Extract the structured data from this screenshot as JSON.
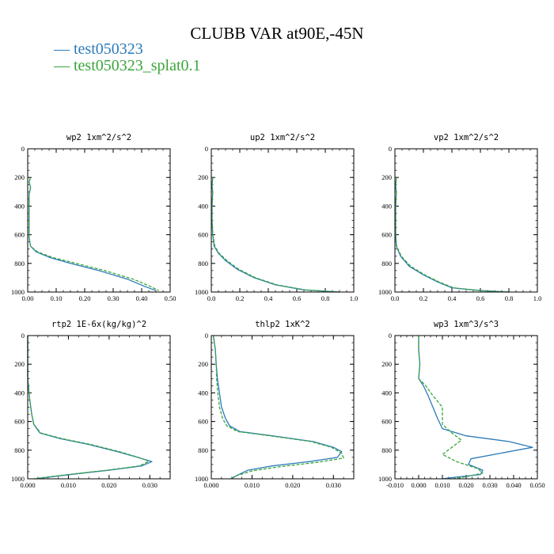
{
  "title": "CLUBB VAR at90E,-45N",
  "legend": [
    {
      "name": "test050323",
      "color": "#2b7bba"
    },
    {
      "name": "test050323_splat0.1",
      "color": "#3aa53a"
    }
  ],
  "chart_data": [
    {
      "type": "line",
      "title": "wp2  1xm^2/s^2",
      "xlim": [
        0,
        0.5
      ],
      "ylim": [
        0,
        1000
      ],
      "xticks": [
        0.0,
        0.1,
        0.2,
        0.3,
        0.4,
        0.5
      ],
      "xticklabels": [
        "0.00",
        "0.10",
        "0.20",
        "0.30",
        "0.40",
        "0.50"
      ],
      "yticks": [
        0,
        200,
        400,
        600,
        800,
        1000
      ],
      "series": [
        {
          "name": "test050323",
          "points": [
            [
              0.01,
              200
            ],
            [
              0.005,
              230
            ],
            [
              0.01,
              270
            ],
            [
              0.005,
              320
            ],
            [
              0.005,
              400
            ],
            [
              0.005,
              500
            ],
            [
              0.005,
              620
            ],
            [
              0.01,
              680
            ],
            [
              0.03,
              720
            ],
            [
              0.08,
              760
            ],
            [
              0.15,
              800
            ],
            [
              0.25,
              850
            ],
            [
              0.35,
              910
            ],
            [
              0.41,
              960
            ],
            [
              0.45,
              990
            ]
          ]
        },
        {
          "name": "test050323_splat0.1",
          "points": [
            [
              0.01,
              200
            ],
            [
              0.005,
              230
            ],
            [
              0.01,
              270
            ],
            [
              0.005,
              320
            ],
            [
              0.005,
              400
            ],
            [
              0.005,
              500
            ],
            [
              0.005,
              620
            ],
            [
              0.01,
              680
            ],
            [
              0.035,
              720
            ],
            [
              0.09,
              760
            ],
            [
              0.17,
              800
            ],
            [
              0.27,
              850
            ],
            [
              0.37,
              910
            ],
            [
              0.43,
              960
            ],
            [
              0.46,
              990
            ]
          ]
        }
      ]
    },
    {
      "type": "line",
      "title": "up2  1xm^2/s^2",
      "xlim": [
        0,
        1.0
      ],
      "ylim": [
        0,
        1000
      ],
      "xticks": [
        0.0,
        0.2,
        0.4,
        0.6,
        0.8,
        1.0
      ],
      "xticklabels": [
        "0.0",
        "0.2",
        "0.4",
        "0.6",
        "0.8",
        "1.0"
      ],
      "yticks": [
        0,
        200,
        400,
        600,
        800,
        1000
      ],
      "series": [
        {
          "name": "test050323",
          "points": [
            [
              0.01,
              200
            ],
            [
              0.005,
              260
            ],
            [
              0.01,
              300
            ],
            [
              0.005,
              400
            ],
            [
              0.005,
              500
            ],
            [
              0.01,
              600
            ],
            [
              0.02,
              680
            ],
            [
              0.05,
              730
            ],
            [
              0.1,
              780
            ],
            [
              0.18,
              840
            ],
            [
              0.3,
              900
            ],
            [
              0.45,
              950
            ],
            [
              0.65,
              985
            ],
            [
              0.9,
              1000
            ]
          ]
        },
        {
          "name": "test050323_splat0.1",
          "points": [
            [
              0.01,
              200
            ],
            [
              0.005,
              260
            ],
            [
              0.01,
              300
            ],
            [
              0.005,
              400
            ],
            [
              0.005,
              500
            ],
            [
              0.01,
              600
            ],
            [
              0.025,
              680
            ],
            [
              0.055,
              730
            ],
            [
              0.11,
              780
            ],
            [
              0.19,
              840
            ],
            [
              0.31,
              900
            ],
            [
              0.46,
              950
            ],
            [
              0.66,
              985
            ],
            [
              0.9,
              1000
            ]
          ]
        }
      ]
    },
    {
      "type": "line",
      "title": "vp2  1xm^2/s^2",
      "xlim": [
        0,
        1.0
      ],
      "ylim": [
        0,
        1000
      ],
      "xticks": [
        0.0,
        0.2,
        0.4,
        0.6,
        0.8,
        1.0
      ],
      "xticklabels": [
        "0.0",
        "0.2",
        "0.4",
        "0.6",
        "0.8",
        "1.0"
      ],
      "yticks": [
        0,
        200,
        400,
        600,
        800,
        1000
      ],
      "series": [
        {
          "name": "test050323",
          "points": [
            [
              0.01,
              200
            ],
            [
              0.005,
              260
            ],
            [
              0.01,
              300
            ],
            [
              0.005,
              400
            ],
            [
              0.005,
              500
            ],
            [
              0.005,
              600
            ],
            [
              0.01,
              680
            ],
            [
              0.04,
              750
            ],
            [
              0.1,
              820
            ],
            [
              0.2,
              880
            ],
            [
              0.3,
              930
            ],
            [
              0.4,
              970
            ],
            [
              0.6,
              990
            ],
            [
              0.8,
              1000
            ]
          ]
        },
        {
          "name": "test050323_splat0.1",
          "points": [
            [
              0.01,
              200
            ],
            [
              0.005,
              260
            ],
            [
              0.01,
              300
            ],
            [
              0.005,
              400
            ],
            [
              0.005,
              500
            ],
            [
              0.005,
              600
            ],
            [
              0.012,
              680
            ],
            [
              0.045,
              750
            ],
            [
              0.11,
              820
            ],
            [
              0.21,
              880
            ],
            [
              0.31,
              930
            ],
            [
              0.41,
              970
            ],
            [
              0.6,
              990
            ],
            [
              0.8,
              1000
            ]
          ]
        }
      ]
    },
    {
      "type": "line",
      "title": "rtp2  1E-6x(kg/kg)^2",
      "xlim": [
        0,
        0.035
      ],
      "ylim": [
        0,
        1000
      ],
      "xticks": [
        0.0,
        0.01,
        0.02,
        0.03
      ],
      "xticklabels": [
        "0.000",
        "0.010",
        "0.020",
        "0.030"
      ],
      "yticks": [
        0,
        200,
        400,
        600,
        800,
        1000
      ],
      "series": [
        {
          "name": "test050323",
          "points": [
            [
              0.0,
              0
            ],
            [
              0.0,
              300
            ],
            [
              0.0005,
              450
            ],
            [
              0.001,
              550
            ],
            [
              0.0015,
              620
            ],
            [
              0.003,
              680
            ],
            [
              0.008,
              720
            ],
            [
              0.015,
              760
            ],
            [
              0.022,
              810
            ],
            [
              0.027,
              850
            ],
            [
              0.0305,
              880
            ],
            [
              0.028,
              910
            ],
            [
              0.02,
              940
            ],
            [
              0.012,
              965
            ],
            [
              0.006,
              985
            ],
            [
              0.002,
              1000
            ]
          ]
        },
        {
          "name": "test050323_splat0.1",
          "points": [
            [
              0.0,
              0
            ],
            [
              0.0,
              300
            ],
            [
              0.0005,
              450
            ],
            [
              0.001,
              550
            ],
            [
              0.0015,
              620
            ],
            [
              0.0032,
              680
            ],
            [
              0.0085,
              720
            ],
            [
              0.0155,
              760
            ],
            [
              0.0225,
              810
            ],
            [
              0.0272,
              850
            ],
            [
              0.0298,
              878
            ],
            [
              0.0275,
              910
            ],
            [
              0.0195,
              940
            ],
            [
              0.0115,
              965
            ],
            [
              0.0055,
              985
            ],
            [
              0.0015,
              1000
            ]
          ]
        }
      ]
    },
    {
      "type": "line",
      "title": "thlp2  1xK^2",
      "xlim": [
        0,
        0.035
      ],
      "ylim": [
        0,
        1000
      ],
      "xticks": [
        0.0,
        0.01,
        0.02,
        0.03
      ],
      "xticklabels": [
        "0.000",
        "0.010",
        "0.020",
        "0.030"
      ],
      "yticks": [
        0,
        200,
        400,
        600,
        800,
        1000
      ],
      "series": [
        {
          "name": "test050323",
          "points": [
            [
              0.0005,
              0
            ],
            [
              0.001,
              100
            ],
            [
              0.0012,
              200
            ],
            [
              0.0015,
              300
            ],
            [
              0.002,
              400
            ],
            [
              0.0025,
              500
            ],
            [
              0.0035,
              580
            ],
            [
              0.0045,
              630
            ],
            [
              0.007,
              670
            ],
            [
              0.015,
              700
            ],
            [
              0.025,
              740
            ],
            [
              0.03,
              780
            ],
            [
              0.032,
              810
            ],
            [
              0.031,
              850
            ],
            [
              0.024,
              880
            ],
            [
              0.015,
              910
            ],
            [
              0.009,
              940
            ],
            [
              0.006,
              980
            ],
            [
              0.005,
              1000
            ]
          ]
        },
        {
          "name": "test050323_splat0.1",
          "points": [
            [
              0.0005,
              0
            ],
            [
              0.001,
              100
            ],
            [
              0.0012,
              200
            ],
            [
              0.0013,
              300
            ],
            [
              0.0016,
              400
            ],
            [
              0.002,
              500
            ],
            [
              0.0028,
              580
            ],
            [
              0.0038,
              630
            ],
            [
              0.0065,
              670
            ],
            [
              0.0145,
              700
            ],
            [
              0.0245,
              740
            ],
            [
              0.0295,
              780
            ],
            [
              0.032,
              820
            ],
            [
              0.0325,
              855
            ],
            [
              0.026,
              885
            ],
            [
              0.017,
              915
            ],
            [
              0.01,
              945
            ],
            [
              0.006,
              980
            ],
            [
              0.0045,
              1000
            ]
          ]
        }
      ]
    },
    {
      "type": "line",
      "title": "wp3  1xm^3/s^3",
      "xlim": [
        -0.01,
        0.05
      ],
      "ylim": [
        0,
        1000
      ],
      "xticks": [
        -0.01,
        0.0,
        0.01,
        0.02,
        0.03,
        0.04,
        0.05
      ],
      "xticklabels": [
        "-0.010",
        "0.000",
        "0.010",
        "0.020",
        "0.030",
        "0.040",
        "0.050"
      ],
      "yticks": [
        0,
        200,
        400,
        600,
        800,
        1000
      ],
      "series": [
        {
          "name": "test050323",
          "points": [
            [
              0.0,
              0
            ],
            [
              0.0,
              100
            ],
            [
              0.0005,
              200
            ],
            [
              0.0,
              300
            ],
            [
              0.002,
              350
            ],
            [
              0.004,
              420
            ],
            [
              0.006,
              500
            ],
            [
              0.008,
              580
            ],
            [
              0.01,
              650
            ],
            [
              0.02,
              700
            ],
            [
              0.038,
              740
            ],
            [
              0.048,
              780
            ],
            [
              0.035,
              820
            ],
            [
              0.022,
              860
            ],
            [
              0.021,
              900
            ],
            [
              0.027,
              940
            ],
            [
              0.026,
              970
            ],
            [
              0.015,
              990
            ],
            [
              0.01,
              1000
            ]
          ]
        },
        {
          "name": "test050323_splat0.1",
          "points": [
            [
              0.0,
              0
            ],
            [
              0.0,
              100
            ],
            [
              0.0005,
              200
            ],
            [
              0.0,
              300
            ],
            [
              0.003,
              350
            ],
            [
              0.006,
              420
            ],
            [
              0.01,
              500
            ],
            [
              0.01,
              560
            ],
            [
              0.01,
              620
            ],
            [
              0.014,
              680
            ],
            [
              0.018,
              730
            ],
            [
              0.014,
              780
            ],
            [
              0.01,
              830
            ],
            [
              0.016,
              880
            ],
            [
              0.025,
              930
            ],
            [
              0.027,
              960
            ],
            [
              0.02,
              985
            ],
            [
              0.015,
              1000
            ]
          ]
        }
      ]
    }
  ]
}
